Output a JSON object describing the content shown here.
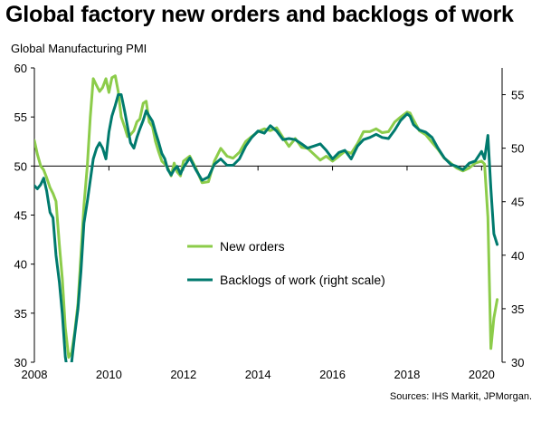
{
  "header": {
    "title": "Global factory new orders and backlogs of work",
    "subtitle": "Global  Manufacturing  PMI"
  },
  "footer": {
    "source": "Sources: IHS Markit, JPMorgan."
  },
  "colors": {
    "new_orders": "#8ccc4a",
    "backlogs": "#007a6e",
    "axis": "#000000"
  },
  "chart_data": {
    "type": "line",
    "x_ticks": [
      "2008",
      "2010",
      "2012",
      "2014",
      "2016",
      "2018",
      "2020"
    ],
    "xlim": [
      2008,
      2020.55
    ],
    "y_left": {
      "ticks": [
        "30",
        "35",
        "40",
        "45",
        "50",
        "55",
        "60"
      ],
      "range": [
        30,
        60
      ],
      "reference_line": 50
    },
    "y_right": {
      "ticks": [
        "30",
        "35",
        "40",
        "45",
        "50",
        "55"
      ],
      "range": [
        30,
        57.5
      ]
    },
    "grid": false,
    "legend": {
      "placement": "center"
    },
    "series": [
      {
        "name": "New orders",
        "axis": "left",
        "color": "#8ccc4a",
        "x": [
          2008.0,
          2008.08,
          2008.17,
          2008.25,
          2008.33,
          2008.42,
          2008.5,
          2008.58,
          2008.67,
          2008.75,
          2008.83,
          2008.92,
          2009.0,
          2009.08,
          2009.17,
          2009.25,
          2009.33,
          2009.42,
          2009.5,
          2009.58,
          2009.67,
          2009.75,
          2009.83,
          2009.92,
          2010.0,
          2010.08,
          2010.17,
          2010.25,
          2010.33,
          2010.42,
          2010.5,
          2010.58,
          2010.67,
          2010.75,
          2010.83,
          2010.92,
          2011.0,
          2011.08,
          2011.17,
          2011.25,
          2011.33,
          2011.42,
          2011.5,
          2011.58,
          2011.67,
          2011.75,
          2011.83,
          2011.92,
          2012.0,
          2012.17,
          2012.33,
          2012.5,
          2012.67,
          2012.83,
          2013.0,
          2013.17,
          2013.33,
          2013.5,
          2013.67,
          2013.83,
          2014.0,
          2014.17,
          2014.33,
          2014.5,
          2014.67,
          2014.83,
          2015.0,
          2015.17,
          2015.33,
          2015.5,
          2015.67,
          2015.83,
          2016.0,
          2016.17,
          2016.33,
          2016.5,
          2016.67,
          2016.83,
          2017.0,
          2017.17,
          2017.33,
          2017.5,
          2017.67,
          2017.83,
          2018.0,
          2018.08,
          2018.17,
          2018.33,
          2018.5,
          2018.67,
          2018.83,
          2019.0,
          2019.17,
          2019.33,
          2019.5,
          2019.67,
          2019.83,
          2020.0,
          2020.08,
          2020.17,
          2020.25,
          2020.33,
          2020.42
        ],
        "y": [
          52.6,
          51.2,
          50.0,
          49.6,
          48.8,
          47.8,
          47.2,
          46.4,
          42.0,
          38.5,
          33.5,
          30.5,
          31.0,
          33.0,
          36.0,
          41.0,
          46.0,
          50.0,
          55.0,
          58.9,
          58.2,
          57.6,
          58.0,
          58.9,
          57.5,
          59.0,
          59.2,
          57.6,
          55.0,
          54.0,
          53.0,
          53.2,
          53.6,
          54.5,
          54.8,
          56.4,
          56.6,
          54.5,
          54.0,
          52.5,
          51.5,
          50.5,
          50.2,
          49.8,
          49.0,
          50.3,
          49.4,
          49.0,
          50.5,
          51.0,
          49.8,
          48.3,
          48.4,
          50.5,
          51.8,
          51.0,
          50.8,
          51.4,
          52.5,
          53.0,
          53.5,
          53.8,
          53.6,
          53.9,
          52.9,
          52.0,
          52.8,
          51.9,
          51.8,
          51.2,
          50.6,
          51.0,
          50.5,
          51.0,
          51.5,
          51.3,
          52.3,
          53.5,
          53.5,
          53.8,
          53.4,
          53.5,
          54.5,
          55.0,
          55.5,
          55.4,
          54.7,
          53.6,
          53.2,
          52.4,
          51.7,
          50.8,
          50.3,
          49.8,
          49.5,
          49.8,
          50.3,
          50.5,
          50.2,
          44.8,
          31.4,
          34.5,
          36.4
        ]
      },
      {
        "name": "Backlogs of work (right scale)",
        "axis": "right",
        "color": "#007a6e",
        "x": [
          2008.0,
          2008.08,
          2008.17,
          2008.25,
          2008.33,
          2008.42,
          2008.5,
          2008.58,
          2008.67,
          2008.75,
          2008.83,
          2008.92,
          2009.0,
          2009.08,
          2009.17,
          2009.25,
          2009.33,
          2009.42,
          2009.5,
          2009.58,
          2009.67,
          2009.75,
          2009.83,
          2009.92,
          2010.0,
          2010.08,
          2010.17,
          2010.25,
          2010.33,
          2010.42,
          2010.5,
          2010.58,
          2010.67,
          2010.75,
          2010.83,
          2010.92,
          2011.0,
          2011.08,
          2011.17,
          2011.25,
          2011.33,
          2011.42,
          2011.5,
          2011.58,
          2011.67,
          2011.75,
          2011.83,
          2011.92,
          2012.0,
          2012.17,
          2012.33,
          2012.5,
          2012.67,
          2012.83,
          2013.0,
          2013.17,
          2013.33,
          2013.5,
          2013.67,
          2013.83,
          2014.0,
          2014.17,
          2014.33,
          2014.5,
          2014.67,
          2014.83,
          2015.0,
          2015.17,
          2015.33,
          2015.5,
          2015.67,
          2015.83,
          2016.0,
          2016.17,
          2016.33,
          2016.5,
          2016.67,
          2016.83,
          2017.0,
          2017.17,
          2017.33,
          2017.5,
          2017.67,
          2017.83,
          2018.0,
          2018.08,
          2018.17,
          2018.33,
          2018.5,
          2018.67,
          2018.83,
          2019.0,
          2019.17,
          2019.33,
          2019.5,
          2019.67,
          2019.83,
          2020.0,
          2020.08,
          2020.17,
          2020.25,
          2020.33,
          2020.42
        ],
        "y": [
          46.5,
          46.2,
          46.6,
          47.2,
          46.0,
          44.0,
          43.5,
          40.0,
          37.5,
          34.5,
          30.5,
          28.5,
          30.0,
          32.5,
          35.0,
          38.5,
          43.0,
          45.0,
          47.0,
          49.0,
          50.0,
          50.5,
          50.0,
          49.0,
          51.5,
          53.0,
          54.0,
          55.0,
          55.0,
          53.5,
          52.0,
          50.5,
          50.0,
          51.0,
          51.8,
          52.6,
          53.5,
          53.0,
          52.5,
          51.5,
          50.6,
          49.5,
          49.0,
          48.0,
          47.5,
          48.0,
          48.3,
          47.6,
          48.2,
          49.1,
          48.0,
          47.0,
          47.3,
          48.5,
          49.0,
          48.4,
          48.4,
          49.0,
          50.2,
          51.0,
          51.6,
          51.4,
          52.1,
          51.6,
          50.8,
          50.9,
          50.8,
          50.4,
          50.0,
          50.2,
          50.4,
          49.8,
          49.0,
          49.6,
          49.8,
          49.0,
          50.2,
          50.8,
          51.0,
          51.3,
          51.0,
          50.9,
          51.7,
          52.6,
          53.2,
          53.0,
          52.2,
          51.7,
          51.5,
          51.0,
          50.0,
          49.1,
          48.5,
          48.3,
          48.0,
          48.6,
          48.8,
          49.7,
          49.0,
          51.2,
          46.2,
          42.0,
          41.0
        ]
      }
    ]
  }
}
